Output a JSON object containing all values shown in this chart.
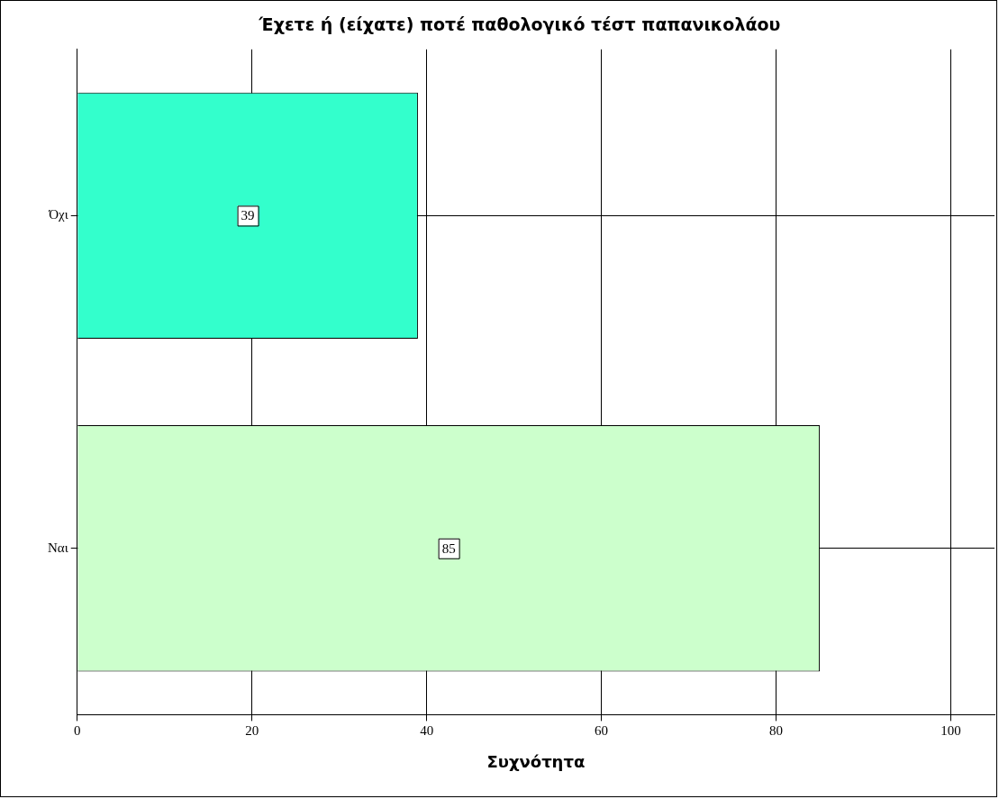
{
  "chart_data": {
    "type": "bar",
    "orientation": "horizontal",
    "title": "Έχετε ή (είχατε) ποτέ παθολογικό τέστ παπανικολάου",
    "xlabel": "Συχνότητα",
    "categories": [
      "Όχι",
      "Ναι"
    ],
    "values": [
      39,
      85
    ],
    "colors": [
      "#33ffcc",
      "#ccffcc"
    ],
    "xlim": [
      0,
      105
    ],
    "xticks": [
      0,
      20,
      40,
      60,
      80,
      100
    ],
    "grid": true,
    "legend": false,
    "data_labels": true
  }
}
